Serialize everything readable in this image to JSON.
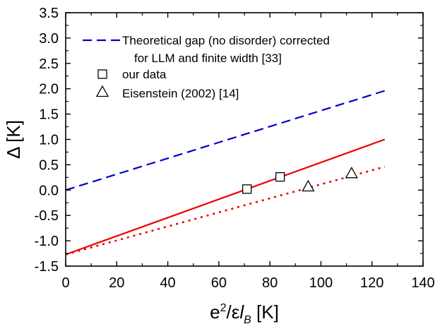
{
  "chart_data": {
    "type": "scatter",
    "title": "",
    "xlabel": {
      "base": "e",
      "sup": "2",
      "mid": "/ε",
      "italic": "l",
      "sub": "B",
      "unit": " [K]"
    },
    "ylabel": "Δ [K]",
    "xlim": [
      0,
      140
    ],
    "ylim": [
      -1.5,
      3.5
    ],
    "x_ticks": [
      0,
      20,
      40,
      60,
      80,
      100,
      120,
      140
    ],
    "x_tick_labels": [
      "0",
      "20",
      "40",
      "60",
      "80",
      "100",
      "120",
      "140"
    ],
    "y_ticks": [
      -1.5,
      -1.0,
      -0.5,
      0.0,
      0.5,
      1.0,
      1.5,
      2.0,
      2.5,
      3.0,
      3.5
    ],
    "y_tick_labels": [
      "-1.5",
      "-1.0",
      "-0.5",
      "0.0",
      "0.5",
      "1.0",
      "1.5",
      "2.0",
      "2.5",
      "3.0",
      "3.5"
    ],
    "grid": false,
    "legend": {
      "placement": "top-left",
      "entries": [
        {
          "series": "theory",
          "lines": [
            "Theoretical gap (no disorder) corrected",
            "for LLM and finite width [33]"
          ]
        },
        {
          "series": "ours",
          "lines": [
            "our data"
          ]
        },
        {
          "series": "eisenstein",
          "lines": [
            "Eisenstein (2002) [14]"
          ]
        }
      ]
    },
    "lines": [
      {
        "key": "theory",
        "style": "dashed",
        "color": "#0000cc",
        "x": [
          0,
          125
        ],
        "y": [
          0.0,
          1.96
        ]
      },
      {
        "key": "ours_fit",
        "style": "solid",
        "color": "#ee0000",
        "x": [
          0,
          125
        ],
        "y": [
          -1.27,
          1.0
        ]
      },
      {
        "key": "eisenstein_fit",
        "style": "dotted",
        "color": "#ee0000",
        "x": [
          0,
          125
        ],
        "y": [
          -1.27,
          0.46
        ]
      }
    ],
    "points": [
      {
        "key": "ours",
        "marker": "square",
        "x": [
          71,
          84
        ],
        "y": [
          0.02,
          0.26
        ]
      },
      {
        "key": "eisenstein",
        "marker": "triangle",
        "x": [
          95,
          112
        ],
        "y": [
          0.06,
          0.32
        ]
      }
    ]
  }
}
